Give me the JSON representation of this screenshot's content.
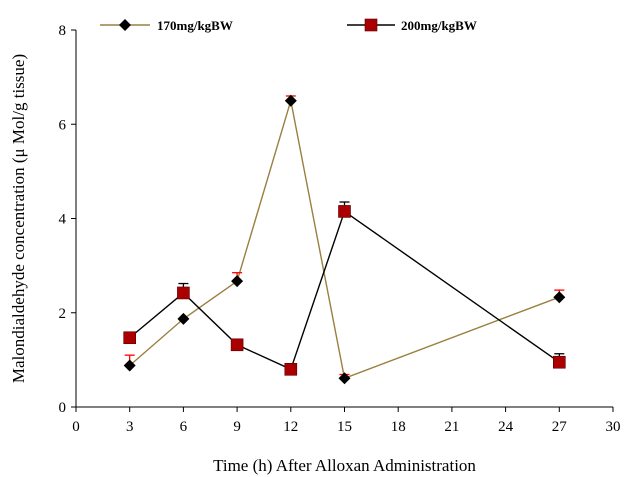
{
  "chart_data": {
    "type": "line",
    "xlabel": "Time (h) After Alloxan Administration",
    "ylabel": "Malondialdehyde concentration (μ Mol/g tissue)",
    "xlim": [
      0,
      30
    ],
    "ylim": [
      0,
      8
    ],
    "xticks": [
      0,
      3,
      6,
      9,
      12,
      15,
      18,
      21,
      24,
      27,
      30
    ],
    "yticks": [
      0,
      2,
      4,
      6,
      8
    ],
    "grid": false,
    "legend": "top",
    "series": [
      {
        "name": "170mg/kgBW",
        "marker": "diamond",
        "line_color": "#9a8040",
        "marker_color": "#000000",
        "error_color": "#ff0000",
        "points": [
          {
            "x": 3,
            "y": 0.88,
            "err": 0.22
          },
          {
            "x": 6,
            "y": 1.87,
            "err": 0
          },
          {
            "x": 9,
            "y": 2.67,
            "err": 0.18
          },
          {
            "x": 12,
            "y": 6.5,
            "err": 0.1
          },
          {
            "x": 15,
            "y": 0.61,
            "err": 0.08
          },
          {
            "x": 27,
            "y": 2.33,
            "err": 0.15
          }
        ]
      },
      {
        "name": "200mg/kgBW",
        "marker": "square",
        "line_color": "#000000",
        "marker_color": "#aa0000",
        "error_color": "#000000",
        "points": [
          {
            "x": 3,
            "y": 1.47,
            "err": 0.05
          },
          {
            "x": 6,
            "y": 2.42,
            "err": 0.2
          },
          {
            "x": 9,
            "y": 1.32,
            "err": 0
          },
          {
            "x": 12,
            "y": 0.8,
            "err": 0
          },
          {
            "x": 15,
            "y": 4.15,
            "err": 0.2
          },
          {
            "x": 27,
            "y": 0.95,
            "err": 0.18
          }
        ]
      }
    ]
  }
}
